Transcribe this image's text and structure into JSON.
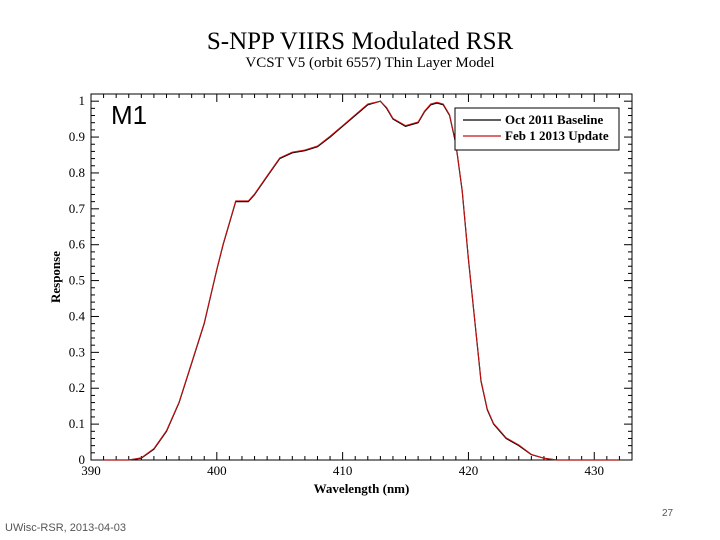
{
  "chart_data": {
    "type": "line",
    "title": "S-NPP VIIRS Modulated RSR",
    "subtitle": "VCST V5 (orbit 6557) Thin Layer Model",
    "panel_label": "M1",
    "xlabel": "Wavelength (nm)",
    "ylabel": "Response",
    "xlim": [
      390,
      433
    ],
    "ylim": [
      0,
      1.02
    ],
    "x_ticks": [
      390,
      400,
      410,
      420,
      430
    ],
    "y_ticks": [
      0,
      0.1,
      0.2,
      0.3,
      0.4,
      0.5,
      0.6,
      0.7,
      0.8,
      0.9,
      1
    ],
    "grid": false,
    "legend_position": "top-right",
    "series": [
      {
        "name": "Oct 2011 Baseline",
        "color": "#000000",
        "x": [
          391,
          392,
          393,
          394,
          395,
          396,
          397,
          398,
          399,
          400,
          400.5,
          401,
          401.5,
          402,
          402.5,
          403,
          404,
          405,
          406,
          407,
          408,
          409,
          410,
          411,
          412,
          413,
          413.5,
          414,
          415,
          416,
          416.5,
          417,
          417.5,
          418,
          418.5,
          419,
          419.5,
          420,
          420.5,
          421,
          421.5,
          422,
          422.5,
          423,
          424,
          425,
          426,
          427,
          428,
          429,
          430,
          431,
          432
        ],
        "y": [
          0.0,
          0.0,
          0.0,
          0.005,
          0.03,
          0.08,
          0.16,
          0.27,
          0.38,
          0.53,
          0.6,
          0.66,
          0.72,
          0.72,
          0.72,
          0.74,
          0.79,
          0.84,
          0.856,
          0.862,
          0.873,
          0.9,
          0.93,
          0.96,
          0.99,
          1.0,
          0.98,
          0.95,
          0.93,
          0.94,
          0.97,
          0.99,
          0.995,
          0.99,
          0.96,
          0.88,
          0.75,
          0.56,
          0.39,
          0.22,
          0.14,
          0.1,
          0.08,
          0.06,
          0.04,
          0.015,
          0.005,
          0.0,
          0.0,
          0.0,
          0.0,
          0.0,
          0.0
        ]
      },
      {
        "name": "Feb 1 2013 Update",
        "color": "#cc1111",
        "x": [
          391,
          392,
          393,
          394,
          395,
          396,
          397,
          398,
          399,
          400,
          400.5,
          401,
          401.5,
          402,
          402.5,
          403,
          404,
          405,
          406,
          407,
          408,
          409,
          410,
          411,
          412,
          413,
          413.5,
          414,
          415,
          416,
          416.5,
          417,
          417.5,
          418,
          418.5,
          419,
          419.5,
          420,
          420.5,
          421,
          421.5,
          422,
          422.5,
          423,
          424,
          425,
          426,
          427,
          428,
          429,
          430,
          431,
          432
        ],
        "y": [
          0.0,
          0.0,
          0.0,
          0.006,
          0.032,
          0.082,
          0.162,
          0.272,
          0.382,
          0.532,
          0.602,
          0.662,
          0.722,
          0.722,
          0.722,
          0.742,
          0.792,
          0.842,
          0.858,
          0.864,
          0.875,
          0.902,
          0.932,
          0.962,
          0.992,
          1.0,
          0.982,
          0.952,
          0.932,
          0.942,
          0.972,
          0.992,
          0.997,
          0.992,
          0.962,
          0.882,
          0.752,
          0.562,
          0.392,
          0.222,
          0.142,
          0.102,
          0.082,
          0.062,
          0.042,
          0.016,
          0.005,
          0.0,
          0.0,
          0.0,
          0.0,
          0.0,
          0.0
        ]
      }
    ]
  },
  "footer": {
    "source": "UWisc-RSR, 2013-04-03",
    "page_number": "27"
  }
}
